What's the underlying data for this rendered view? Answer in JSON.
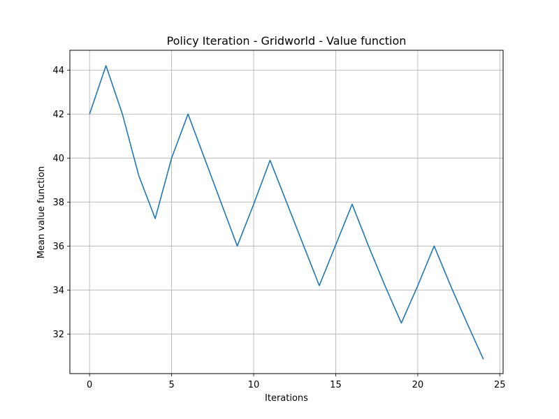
{
  "chart_data": {
    "type": "line",
    "title": "Policy Iteration - Gridworld - Value function",
    "xlabel": "Iterations",
    "ylabel": "Mean value function",
    "xlim": [
      -1.2,
      25.2
    ],
    "ylim": [
      30.2,
      44.9
    ],
    "xticks": [
      0,
      5,
      10,
      15,
      20,
      25
    ],
    "yticks": [
      32,
      34,
      36,
      38,
      40,
      42,
      44
    ],
    "grid": true,
    "series": [
      {
        "color": "#1f77b4",
        "x": [
          0,
          1,
          2,
          3,
          4,
          5,
          6,
          7,
          8,
          9,
          10,
          11,
          12,
          13,
          14,
          15,
          16,
          17,
          18,
          19,
          20,
          21,
          22,
          23,
          24
        ],
        "y": [
          42.0,
          44.2,
          42.0,
          39.2,
          37.25,
          40.0,
          42.0,
          40.0,
          38.0,
          36.0,
          37.9,
          39.9,
          38.0,
          36.1,
          34.2,
          36.05,
          37.9,
          36.0,
          34.2,
          32.5,
          34.2,
          36.0,
          34.2,
          32.5,
          30.85
        ]
      }
    ]
  }
}
